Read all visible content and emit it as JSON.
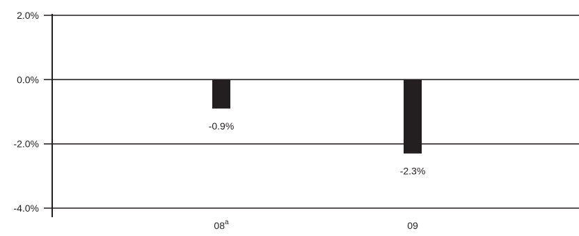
{
  "chart_data": {
    "type": "bar",
    "title": "",
    "xlabel": "",
    "ylabel": "",
    "categories": [
      "08",
      "09"
    ],
    "category_superscripts": [
      "a",
      ""
    ],
    "values": [
      -0.9,
      -2.3
    ],
    "data_labels": [
      "-0.9%",
      "-2.3%"
    ],
    "ylim": [
      -4.0,
      2.0
    ],
    "yticks": [
      2.0,
      0.0,
      -2.0,
      -4.0
    ],
    "ytick_labels": [
      "2.0%",
      "0.0%",
      "-2.0%",
      "-4.0%"
    ],
    "grid": true,
    "legend": "none",
    "bar_color": "#231f20"
  }
}
